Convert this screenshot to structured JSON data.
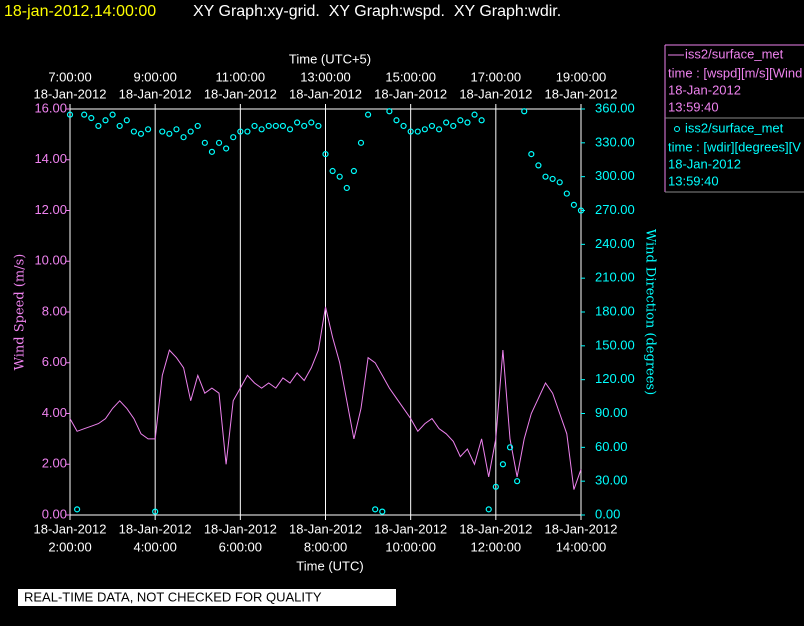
{
  "header": {
    "timestamp": "18-jan-2012,14:00:00",
    "title": "XY Graph:xy-grid.  XY Graph:wspd.  XY Graph:wdir."
  },
  "chart_data": {
    "type": "line",
    "x_label": "Time (UTC)",
    "x2_label": "Time (UTC+5)",
    "y_label": "Wind Speed (m/s)",
    "y2_label": "Wind Direction (degrees)",
    "x": [
      "2012-01-18T02:00:00Z",
      "2012-01-18T02:10:00Z",
      "2012-01-18T02:20:00Z",
      "2012-01-18T02:30:00Z",
      "2012-01-18T02:40:00Z",
      "2012-01-18T02:50:00Z",
      "2012-01-18T03:00:00Z",
      "2012-01-18T03:10:00Z",
      "2012-01-18T03:20:00Z",
      "2012-01-18T03:30:00Z",
      "2012-01-18T03:40:00Z",
      "2012-01-18T03:50:00Z",
      "2012-01-18T04:00:00Z",
      "2012-01-18T04:10:00Z",
      "2012-01-18T04:20:00Z",
      "2012-01-18T04:30:00Z",
      "2012-01-18T04:40:00Z",
      "2012-01-18T04:50:00Z",
      "2012-01-18T05:00:00Z",
      "2012-01-18T05:10:00Z",
      "2012-01-18T05:20:00Z",
      "2012-01-18T05:30:00Z",
      "2012-01-18T05:40:00Z",
      "2012-01-18T05:50:00Z",
      "2012-01-18T06:00:00Z",
      "2012-01-18T06:10:00Z",
      "2012-01-18T06:20:00Z",
      "2012-01-18T06:30:00Z",
      "2012-01-18T06:40:00Z",
      "2012-01-18T06:50:00Z",
      "2012-01-18T07:00:00Z",
      "2012-01-18T07:10:00Z",
      "2012-01-18T07:20:00Z",
      "2012-01-18T07:30:00Z",
      "2012-01-18T07:40:00Z",
      "2012-01-18T07:50:00Z",
      "2012-01-18T08:00:00Z",
      "2012-01-18T08:10:00Z",
      "2012-01-18T08:20:00Z",
      "2012-01-18T08:30:00Z",
      "2012-01-18T08:40:00Z",
      "2012-01-18T08:50:00Z",
      "2012-01-18T09:00:00Z",
      "2012-01-18T09:10:00Z",
      "2012-01-18T09:20:00Z",
      "2012-01-18T09:30:00Z",
      "2012-01-18T09:40:00Z",
      "2012-01-18T09:50:00Z",
      "2012-01-18T10:00:00Z",
      "2012-01-18T10:10:00Z",
      "2012-01-18T10:20:00Z",
      "2012-01-18T10:30:00Z",
      "2012-01-18T10:40:00Z",
      "2012-01-18T10:50:00Z",
      "2012-01-18T11:00:00Z",
      "2012-01-18T11:10:00Z",
      "2012-01-18T11:20:00Z",
      "2012-01-18T11:30:00Z",
      "2012-01-18T11:40:00Z",
      "2012-01-18T11:50:00Z",
      "2012-01-18T12:00:00Z",
      "2012-01-18T12:10:00Z",
      "2012-01-18T12:20:00Z",
      "2012-01-18T12:30:00Z",
      "2012-01-18T12:40:00Z",
      "2012-01-18T12:50:00Z",
      "2012-01-18T13:00:00Z",
      "2012-01-18T13:10:00Z",
      "2012-01-18T13:20:00Z",
      "2012-01-18T13:30:00Z",
      "2012-01-18T13:40:00Z",
      "2012-01-18T13:50:00Z",
      "2012-01-18T14:00:00Z"
    ],
    "xlim": [
      "2012-01-18T02:00:00Z",
      "2012-01-18T14:00:00Z"
    ],
    "xticks": [
      {
        "value": "2012-01-18T02:00:00Z",
        "label": "2:00:00"
      },
      {
        "value": "2012-01-18T04:00:00Z",
        "label": "4:00:00"
      },
      {
        "value": "2012-01-18T06:00:00Z",
        "label": "6:00:00"
      },
      {
        "value": "2012-01-18T08:00:00Z",
        "label": "8:00:00"
      },
      {
        "value": "2012-01-18T10:00:00Z",
        "label": "10:00:00"
      },
      {
        "value": "2012-01-18T12:00:00Z",
        "label": "12:00:00"
      },
      {
        "value": "2012-01-18T14:00:00Z",
        "label": "14:00:00"
      }
    ],
    "xtick_dates": [
      "18-Jan-2012",
      "18-Jan-2012",
      "18-Jan-2012",
      "18-Jan-2012",
      "18-Jan-2012",
      "18-Jan-2012",
      "18-Jan-2012"
    ],
    "x2ticks": [
      {
        "value": "2012-01-18T07:00:00+05:00",
        "label": "7:00:00"
      },
      {
        "value": "2012-01-18T09:00:00+05:00",
        "label": "9:00:00"
      },
      {
        "value": "2012-01-18T11:00:00+05:00",
        "label": "11:00:00"
      },
      {
        "value": "2012-01-18T13:00:00+05:00",
        "label": "13:00:00"
      },
      {
        "value": "2012-01-18T15:00:00+05:00",
        "label": "15:00:00"
      },
      {
        "value": "2012-01-18T17:00:00+05:00",
        "label": "17:00:00"
      },
      {
        "value": "2012-01-18T19:00:00+05:00",
        "label": "19:00:00"
      }
    ],
    "x2tick_dates": [
      "18-Jan-2012",
      "18-Jan-2012",
      "18-Jan-2012",
      "18-Jan-2012",
      "18-Jan-2012",
      "18-Jan-2012",
      "18-Jan-2012"
    ],
    "ylim": [
      0,
      16
    ],
    "yticks": [
      {
        "value": 0,
        "label": "0.00"
      },
      {
        "value": 2,
        "label": "2.00"
      },
      {
        "value": 4,
        "label": "4.00"
      },
      {
        "value": 6,
        "label": "6.00"
      },
      {
        "value": 8,
        "label": "8.00"
      },
      {
        "value": 10,
        "label": "10.00"
      },
      {
        "value": 12,
        "label": "12.00"
      },
      {
        "value": 14,
        "label": "14.00"
      },
      {
        "value": 16,
        "label": "16.00"
      }
    ],
    "y2lim": [
      0,
      360
    ],
    "y2ticks": [
      {
        "value": 0,
        "label": "0.00"
      },
      {
        "value": 30,
        "label": "30.00"
      },
      {
        "value": 60,
        "label": "60.00"
      },
      {
        "value": 90,
        "label": "90.00"
      },
      {
        "value": 120,
        "label": "120.00"
      },
      {
        "value": 150,
        "label": "150.00"
      },
      {
        "value": 180,
        "label": "180.00"
      },
      {
        "value": 210,
        "label": "210.00"
      },
      {
        "value": 240,
        "label": "240.00"
      },
      {
        "value": 270,
        "label": "270.00"
      },
      {
        "value": 300,
        "label": "300.00"
      },
      {
        "value": 330,
        "label": "330.00"
      },
      {
        "value": 360,
        "label": "360.00"
      }
    ],
    "grid": "x",
    "series": [
      {
        "name": "iss2/surface_met",
        "type": "line",
        "color": "#ee82ee",
        "legend_lines": [
          "time : [wspd][m/s][Wind",
          "18-Jan-2012",
          "13:59:40"
        ],
        "values": [
          3.8,
          3.3,
          3.4,
          3.5,
          3.6,
          3.8,
          4.2,
          4.5,
          4.2,
          3.8,
          3.2,
          3.0,
          3.0,
          5.5,
          6.5,
          6.2,
          5.8,
          4.5,
          5.5,
          4.8,
          5.0,
          4.8,
          2.0,
          4.5,
          5.0,
          5.5,
          5.2,
          5.0,
          5.2,
          5.0,
          5.4,
          5.2,
          5.6,
          5.3,
          5.8,
          6.5,
          8.2,
          7.0,
          6.0,
          4.5,
          3.0,
          4.2,
          6.2,
          6.0,
          5.5,
          5.0,
          4.6,
          4.2,
          3.8,
          3.3,
          3.6,
          3.8,
          3.4,
          3.2,
          2.9,
          2.3,
          2.6,
          2.0,
          3.0,
          1.5,
          3.0,
          6.5,
          3.0,
          1.5,
          3.0,
          4.0,
          4.6,
          5.2,
          4.8,
          4.0,
          3.2,
          1.0,
          1.8
        ]
      },
      {
        "name": "iss2/surface_met",
        "type": "scatter",
        "axis": "y2",
        "color": "#00ffff",
        "legend_lines": [
          "time : [wdir][degrees][V",
          "18-Jan-2012",
          "13:59:40"
        ],
        "values": [
          355,
          5,
          355,
          352,
          345,
          350,
          355,
          345,
          350,
          340,
          338,
          342,
          3,
          340,
          338,
          342,
          335,
          340,
          345,
          330,
          322,
          330,
          325,
          335,
          340,
          340,
          345,
          342,
          345,
          345,
          345,
          342,
          348,
          345,
          348,
          345,
          320,
          305,
          300,
          290,
          305,
          330,
          355,
          5,
          3,
          358,
          350,
          345,
          340,
          340,
          342,
          345,
          342,
          348,
          345,
          350,
          348,
          355,
          350,
          5,
          25,
          45,
          60,
          30,
          358,
          320,
          310,
          300,
          298,
          295,
          285,
          275,
          270
        ]
      }
    ]
  },
  "footer": "REAL-TIME DATA, NOT CHECKED FOR QUALITY"
}
